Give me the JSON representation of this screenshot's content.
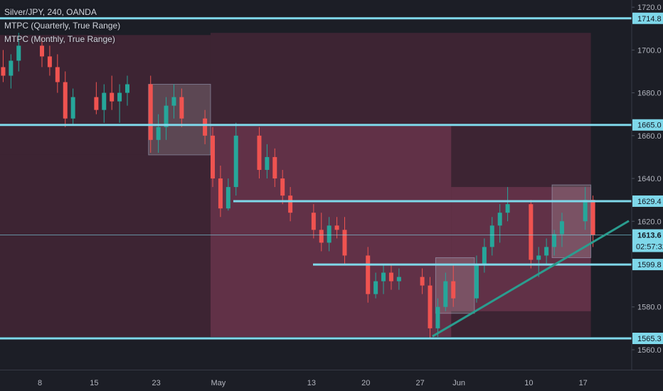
{
  "header": {
    "symbol_line": "Silver/JPY, 240, OANDA",
    "indicators": [
      "MTPC (Quarterly, True Range)",
      "MTPC (Monthly, True Range)"
    ]
  },
  "colors": {
    "background": "#1c1e26",
    "candle_up": "#26a69a",
    "candle_down": "#ef5350",
    "level_line": "#7fd8ea",
    "trendline": "#2a9d8f",
    "box_fill": "#ffffff",
    "range_fill_quarterly": "#5a2a3e",
    "range_fill_monthly": "#7a3a55",
    "price_label_bg": "#7fd8ea"
  },
  "chart_data": {
    "type": "candlestick",
    "title": "Silver/JPY, 240, OANDA",
    "y_axis": {
      "range": [
        1555,
        1720
      ],
      "ticks": [
        1560.0,
        1580.0,
        1600.0,
        1620.0,
        1640.0,
        1660.0,
        1680.0,
        1700.0,
        1720.0
      ],
      "tick_labels": [
        "1560.0",
        "1580.0",
        "1600.0",
        "1620.0",
        "1640.0",
        "1660.0",
        "1680.0",
        "1700.0",
        "1720.0"
      ]
    },
    "x_axis": {
      "tick_labels": [
        "8",
        "15",
        "23",
        "May",
        "13",
        "20",
        "27",
        "Jun",
        "10",
        "17"
      ]
    },
    "horizontal_levels": [
      {
        "value": 1714.8,
        "label": "1714.8"
      },
      {
        "value": 1665.0,
        "label": "1665.0"
      },
      {
        "value": 1629.4,
        "label": "1629.4"
      },
      {
        "value": 1599.8,
        "label": "1599.8"
      },
      {
        "value": 1565.3,
        "label": "1565.3"
      }
    ],
    "current_price": {
      "value": 1613.6,
      "label": "1613.6",
      "countdown": "02:57:32"
    },
    "trendline": {
      "from": {
        "date": "2019-05-28",
        "price": 1565
      },
      "to": {
        "date": "2019-06-20",
        "price": 1614
      }
    },
    "range_boxes": [
      {
        "kind": "quarterly",
        "from": "2019-03-28",
        "to": "2019-04-30",
        "high": 1707,
        "low": 1651
      },
      {
        "kind": "quarterly",
        "from": "2019-03-28",
        "to": "2019-04-30",
        "high": 1651,
        "low": 1566
      },
      {
        "kind": "quarterly",
        "from": "2019-04-30",
        "to": "2019-06-18",
        "high": 1708,
        "low": 1566
      },
      {
        "kind": "monthly",
        "from": "2019-04-30",
        "to": "2019-05-31",
        "high": 1665,
        "low": 1566
      },
      {
        "kind": "monthly",
        "from": "2019-05-31",
        "to": "2019-06-18",
        "high": 1636,
        "low": 1578
      }
    ],
    "highlight_boxes": [
      {
        "from": "2019-04-22",
        "to": "2019-04-30",
        "high": 1684,
        "low": 1651
      },
      {
        "from": "2019-05-29",
        "to": "2019-06-03",
        "high": 1603,
        "low": 1577
      },
      {
        "from": "2019-06-13",
        "to": "2019-06-18",
        "high": 1637,
        "low": 1603
      }
    ],
    "series": [
      {
        "name": "Silver/JPY",
        "ohlc": [
          [
            "2019-04-01",
            1680,
            1690,
            1668,
            1685
          ],
          [
            "2019-04-02",
            1685,
            1696,
            1680,
            1692
          ],
          [
            "2019-04-03",
            1692,
            1700,
            1685,
            1688
          ],
          [
            "2019-04-04",
            1688,
            1698,
            1682,
            1695
          ],
          [
            "2019-04-05",
            1695,
            1708,
            1690,
            1702
          ],
          [
            "2019-04-08",
            1702,
            1706,
            1692,
            1697
          ],
          [
            "2019-04-09",
            1697,
            1702,
            1688,
            1692
          ],
          [
            "2019-04-10",
            1692,
            1698,
            1680,
            1685
          ],
          [
            "2019-04-11",
            1685,
            1690,
            1664,
            1668
          ],
          [
            "2019-04-12",
            1668,
            1682,
            1665,
            1678
          ],
          [
            "2019-04-15",
            1678,
            1685,
            1670,
            1672
          ],
          [
            "2019-04-16",
            1672,
            1684,
            1666,
            1680
          ],
          [
            "2019-04-17",
            1680,
            1688,
            1672,
            1676
          ],
          [
            "2019-04-18",
            1676,
            1684,
            1666,
            1680
          ],
          [
            "2019-04-19",
            1680,
            1688,
            1674,
            1684
          ],
          [
            "2019-04-22",
            1684,
            1688,
            1652,
            1658
          ],
          [
            "2019-04-23",
            1658,
            1670,
            1652,
            1664
          ],
          [
            "2019-04-24",
            1664,
            1678,
            1658,
            1674
          ],
          [
            "2019-04-25",
            1674,
            1684,
            1668,
            1678
          ],
          [
            "2019-04-26",
            1678,
            1682,
            1664,
            1668
          ],
          [
            "2019-04-29",
            1668,
            1672,
            1656,
            1660
          ],
          [
            "2019-04-30",
            1660,
            1664,
            1636,
            1640
          ],
          [
            "2019-05-01",
            1640,
            1646,
            1622,
            1626
          ],
          [
            "2019-05-02",
            1626,
            1640,
            1625,
            1636
          ],
          [
            "2019-05-03",
            1636,
            1666,
            1632,
            1660
          ],
          [
            "2019-05-06",
            1660,
            1664,
            1640,
            1644
          ],
          [
            "2019-05-07",
            1644,
            1656,
            1640,
            1650
          ],
          [
            "2019-05-08",
            1650,
            1654,
            1636,
            1640
          ],
          [
            "2019-05-09",
            1640,
            1644,
            1628,
            1632
          ],
          [
            "2019-05-10",
            1632,
            1636,
            1620,
            1624
          ],
          [
            "2019-05-13",
            1624,
            1628,
            1612,
            1616
          ],
          [
            "2019-05-14",
            1616,
            1624,
            1606,
            1610
          ],
          [
            "2019-05-15",
            1610,
            1622,
            1606,
            1618
          ],
          [
            "2019-05-16",
            1618,
            1622,
            1612,
            1616
          ],
          [
            "2019-05-17",
            1616,
            1622,
            1600,
            1604
          ],
          [
            "2019-05-20",
            1604,
            1608,
            1582,
            1586
          ],
          [
            "2019-05-21",
            1586,
            1596,
            1584,
            1592
          ],
          [
            "2019-05-22",
            1592,
            1600,
            1586,
            1596
          ],
          [
            "2019-05-23",
            1596,
            1600,
            1588,
            1592
          ],
          [
            "2019-05-24",
            1592,
            1598,
            1588,
            1594
          ],
          [
            "2019-05-27",
            1594,
            1598,
            1586,
            1590
          ],
          [
            "2019-05-28",
            1590,
            1594,
            1565,
            1570
          ],
          [
            "2019-05-29",
            1570,
            1584,
            1566,
            1580
          ],
          [
            "2019-05-30",
            1580,
            1596,
            1578,
            1592
          ],
          [
            "2019-05-31",
            1592,
            1600,
            1580,
            1584
          ],
          [
            "2019-06-03",
            1584,
            1604,
            1582,
            1600
          ],
          [
            "2019-06-04",
            1600,
            1612,
            1596,
            1608
          ],
          [
            "2019-06-05",
            1608,
            1622,
            1604,
            1618
          ],
          [
            "2019-06-06",
            1618,
            1628,
            1610,
            1624
          ],
          [
            "2019-06-07",
            1624,
            1636,
            1620,
            1628
          ],
          [
            "2019-06-10",
            1628,
            1630,
            1598,
            1602
          ],
          [
            "2019-06-11",
            1602,
            1608,
            1594,
            1604
          ],
          [
            "2019-06-12",
            1604,
            1612,
            1600,
            1608
          ],
          [
            "2019-06-13",
            1608,
            1616,
            1604,
            1614
          ],
          [
            "2019-06-14",
            1614,
            1624,
            1608,
            1620
          ],
          [
            "2019-06-17",
            1620,
            1636,
            1616,
            1630
          ],
          [
            "2019-06-18",
            1630,
            1632,
            1608,
            1613.6
          ]
        ]
      }
    ],
    "annotations": [
      "1714.8",
      "1665.0",
      "1629.4",
      "1599.8",
      "1565.3",
      "1613.6",
      "02:57:32"
    ]
  }
}
